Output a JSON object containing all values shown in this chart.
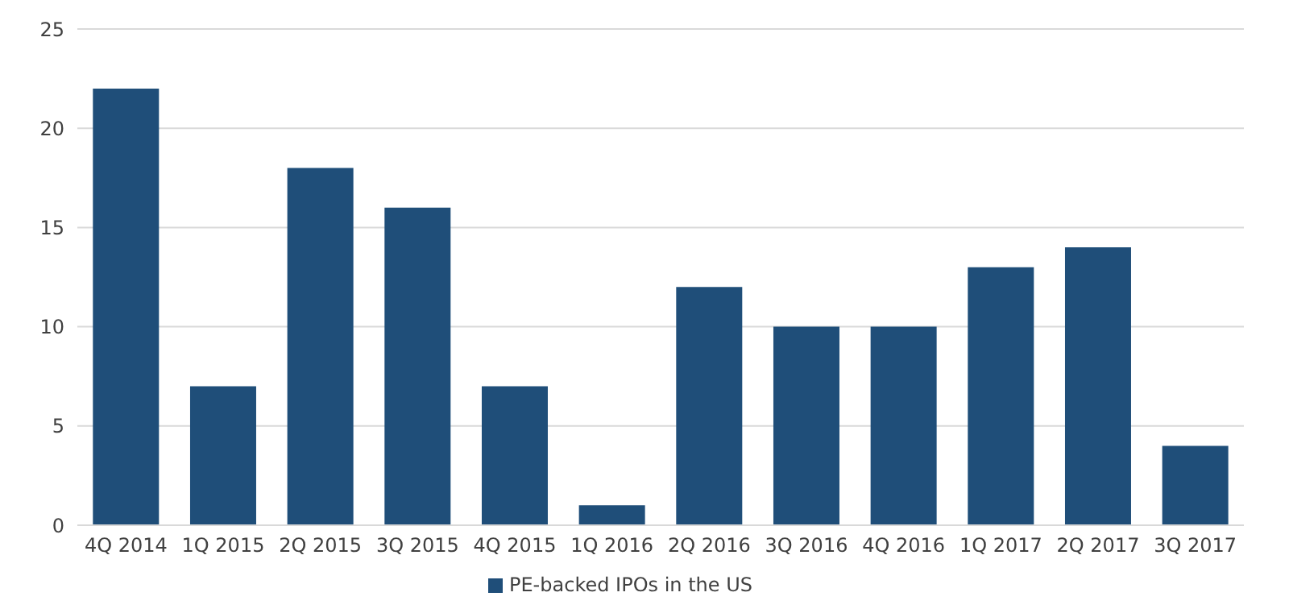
{
  "chart_data": {
    "type": "bar",
    "categories": [
      "4Q 2014",
      "1Q 2015",
      "2Q 2015",
      "3Q 2015",
      "4Q 2015",
      "1Q 2016",
      "2Q 2016",
      "3Q 2016",
      "4Q 2016",
      "1Q 2017",
      "2Q 2017",
      "3Q 2017"
    ],
    "series": [
      {
        "name": "PE-backed IPOs in the US",
        "color": "#1f4e79",
        "values": [
          22,
          7,
          18,
          16,
          7,
          1,
          12,
          10,
          10,
          13,
          14,
          4
        ]
      }
    ],
    "ylim": [
      0,
      25
    ],
    "yticks": [
      0,
      5,
      10,
      15,
      20,
      25
    ],
    "grid": "y",
    "legend": "bottom"
  }
}
